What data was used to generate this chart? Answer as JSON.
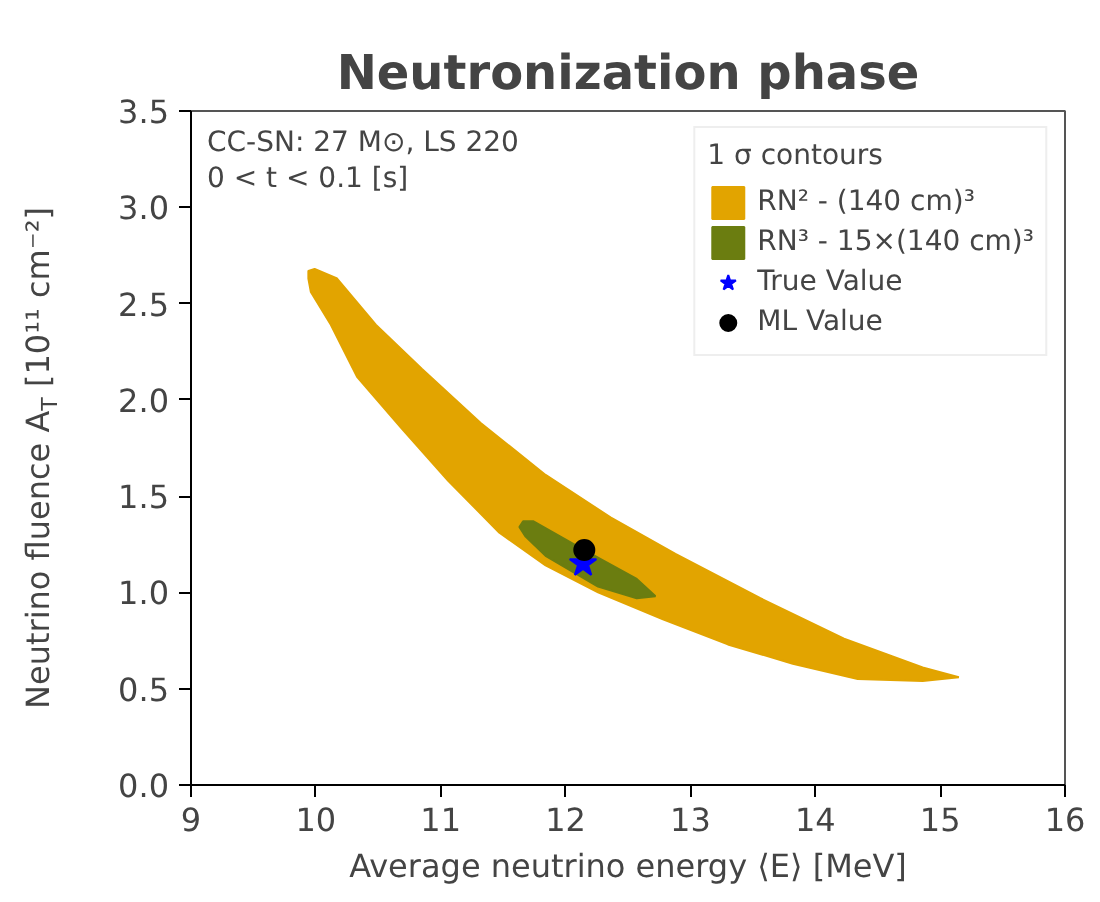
{
  "chart_data": {
    "type": "area",
    "title": "Neutronization phase",
    "xlabel": "Average neutrino energy ⟨E⟩ [MeV]",
    "ylabel": "Neutrino fluence A$_{T}$ [10¹¹ cm⁻²]",
    "legend_title": "1 σ contours",
    "legend": "top right",
    "grid": false,
    "annotations": [
      "CC-SN: 27 M⊙, LS 220",
      "0 < t < 0.1 [s]"
    ],
    "xlim": [
      9,
      16
    ],
    "xticks": [
      9,
      10,
      11,
      12,
      13,
      14,
      15,
      16
    ],
    "ylim": [
      0,
      3.5
    ],
    "yticks": [
      {
        "value": 0,
        "label": "0.0"
      },
      0.5,
      {
        "value": 1,
        "label": "1.0"
      },
      1.5,
      {
        "value": 2,
        "label": "2.0"
      },
      2.5,
      {
        "value": 3,
        "label": "3.0"
      },
      3.5
    ],
    "series": [
      {
        "name": "RN² - (140 cm)³",
        "color": "#e2a400",
        "x": [
          9.94,
          9.99,
          10.17,
          10.48,
          10.85,
          11.32,
          11.84,
          12.36,
          12.88,
          13.56,
          14.23,
          14.86,
          15.15,
          14.86,
          14.34,
          13.82,
          13.3,
          12.78,
          12.26,
          11.84,
          11.47,
          11.06,
          10.69,
          10.33,
          10.12,
          9.96,
          9.94
        ],
        "values": [
          2.67,
          2.68,
          2.63,
          2.39,
          2.16,
          1.88,
          1.61,
          1.39,
          1.2,
          0.97,
          0.76,
          0.61,
          0.56,
          0.54,
          0.55,
          0.63,
          0.73,
          0.86,
          1.0,
          1.14,
          1.31,
          1.58,
          1.85,
          2.12,
          2.39,
          2.56,
          2.63
        ]
      },
      {
        "name": "RN³ - 15×(140 cm)³",
        "color": "#6b7d10",
        "x": [
          11.66,
          11.74,
          12.15,
          12.57,
          12.72,
          12.57,
          12.26,
          11.84,
          11.68,
          11.63
        ],
        "values": [
          1.37,
          1.37,
          1.22,
          1.07,
          0.98,
          0.97,
          1.03,
          1.19,
          1.29,
          1.34
        ]
      },
      {
        "name": "True Value",
        "type": "scatter",
        "marker": "star",
        "color": "#0000ff",
        "x": [
          12.14
        ],
        "values": [
          1.15
        ]
      },
      {
        "name": "ML Value",
        "type": "scatter",
        "marker": "circle",
        "color": "#000000",
        "x": [
          12.15
        ],
        "values": [
          1.22
        ]
      }
    ]
  }
}
